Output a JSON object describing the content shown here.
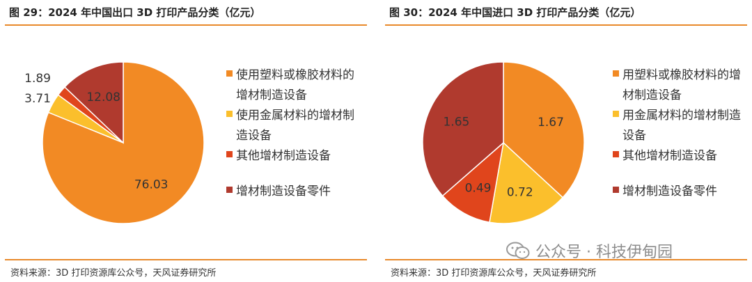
{
  "watermark": {
    "text": "公众号 · 科技伊甸园",
    "icon": "wechat-icon"
  },
  "chart_data": [
    {
      "type": "pie",
      "title": "图 29：2024 年中国出口 3D 打印产品分类（亿元）",
      "source": "资料来源：3D 打印资源库公众号，天风证券研究所",
      "categories": [
        "使用塑料或橡胶材料的增材制造设备",
        "使用金属材料的增材制造设备",
        "其他增材制造设备",
        "增材制造设备零件"
      ],
      "values": [
        76.03,
        3.71,
        1.89,
        12.08
      ],
      "value_labels": [
        "76.03",
        "3.71",
        "1.89",
        "12.08"
      ],
      "colors": [
        "#f28a24",
        "#fbbf2c",
        "#e0451c",
        "#b03a2e"
      ],
      "legend_position": "right"
    },
    {
      "type": "pie",
      "title": "图 30：2024 年中国进口 3D 打印产品分类（亿元）",
      "source": "资料来源：3D 打印资源库公众号，天风证券研究所",
      "categories": [
        "用塑料或橡胶材料的增材制造设备",
        "用金属材料的增材制造设备",
        "其他增材制造设备",
        "增材制造设备零件"
      ],
      "values": [
        1.67,
        0.72,
        0.49,
        1.65
      ],
      "value_labels": [
        "1.67",
        "0.72",
        "0.49",
        "1.65"
      ],
      "colors": [
        "#f28a24",
        "#fbbf2c",
        "#e0451c",
        "#b03a2e"
      ],
      "legend_position": "right"
    }
  ]
}
